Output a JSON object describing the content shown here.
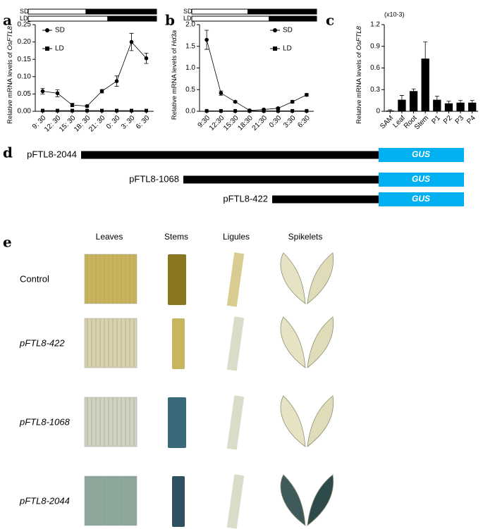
{
  "panels": [
    "a",
    "b",
    "c",
    "d",
    "e"
  ],
  "chart_data": [
    {
      "type": "line",
      "ylabel": "Relative mRNA levels of",
      "ylabel_gene": "OsFTL8",
      "day_bars": [
        "SD",
        "LD"
      ],
      "categories": [
        "9: 30",
        "12: 30",
        "15: 30",
        "18: 30",
        "21: 30",
        "0: 30",
        "3: 30",
        "6: 30"
      ],
      "series": [
        {
          "name": "SD",
          "color": "#000000",
          "marker": "circle",
          "values": [
            0.058,
            0.052,
            0.018,
            0.015,
            0.058,
            0.087,
            0.2,
            0.153
          ],
          "errors": [
            0.008,
            0.01,
            0.005,
            0.003,
            0.005,
            0.015,
            0.025,
            0.015
          ]
        },
        {
          "name": "LD",
          "color": "#000000",
          "marker": "square",
          "values": [
            0.002,
            0.002,
            0.002,
            0.002,
            0.002,
            0.002,
            0.002,
            0.002
          ]
        }
      ],
      "ylim": [
        0,
        0.25
      ],
      "yticks": [
        {
          "value": 0,
          "label": "0.00"
        },
        0.05,
        {
          "value": 0.1,
          "label": "0.10"
        },
        0.15,
        {
          "value": 0.2,
          "label": "0.20"
        },
        0.25
      ]
    },
    {
      "type": "line",
      "ylabel": "Relative mRNA levels of",
      "ylabel_gene": "Hd3a",
      "day_bars": [
        "SD",
        "LD"
      ],
      "categories": [
        "9:30",
        "12:30",
        "15:30",
        "18:30",
        "21:30",
        "0:30",
        "3:30",
        "6:30"
      ],
      "series": [
        {
          "name": "SD",
          "color": "#000000",
          "marker": "circle",
          "values": [
            1.65,
            0.42,
            0.22,
            0.02,
            0.04,
            0.07,
            0.22,
            0.38
          ],
          "errors": [
            0.22,
            0.05,
            0.02,
            0.01,
            0.01,
            0.02,
            0.03,
            0.03
          ]
        },
        {
          "name": "LD",
          "color": "#000000",
          "marker": "square",
          "values": [
            0.01,
            0.01,
            0.01,
            0.01,
            0.01,
            0.01,
            0.01,
            0.01
          ]
        }
      ],
      "ylim": [
        0,
        2
      ],
      "yticks": [
        {
          "value": 0,
          "label": "0.0"
        },
        0.5,
        {
          "value": 1,
          "label": "1.0"
        },
        1.5,
        {
          "value": 2,
          "label": "2.0"
        }
      ]
    },
    {
      "type": "bar",
      "ylabel": "Relative mRNA levels of",
      "ylabel_gene": "OsFTL8",
      "unit": "(x10-3)",
      "categories": [
        "SAM",
        "Leaf",
        "Root",
        "Stem",
        "P1",
        "P2",
        "P3",
        "P4"
      ],
      "series": [
        {
          "name": "OsFTL8",
          "color": "#000000",
          "values": [
            0.01,
            0.16,
            0.28,
            0.73,
            0.16,
            0.11,
            0.12,
            0.12
          ],
          "errors": [
            0.01,
            0.06,
            0.03,
            0.23,
            0.05,
            0.03,
            0.03,
            0.03
          ]
        }
      ],
      "ylim": [
        0,
        1.2
      ],
      "yticks": [
        0,
        0.3,
        0.6,
        0.9,
        1.2
      ]
    }
  ],
  "constructs": [
    {
      "label": "pFTL8-2044",
      "reporter": "GUS"
    },
    {
      "label": "pFTL8-1068",
      "reporter": "GUS"
    },
    {
      "label": "pFTL8-422",
      "reporter": "GUS"
    }
  ],
  "photo_grid": {
    "columns": [
      "Leaves",
      "Stems",
      "Ligules",
      "Spikelets"
    ],
    "rows": [
      "Control",
      "pFTL8-422",
      "pFTL8-1068",
      "pFTL8-2044"
    ]
  }
}
